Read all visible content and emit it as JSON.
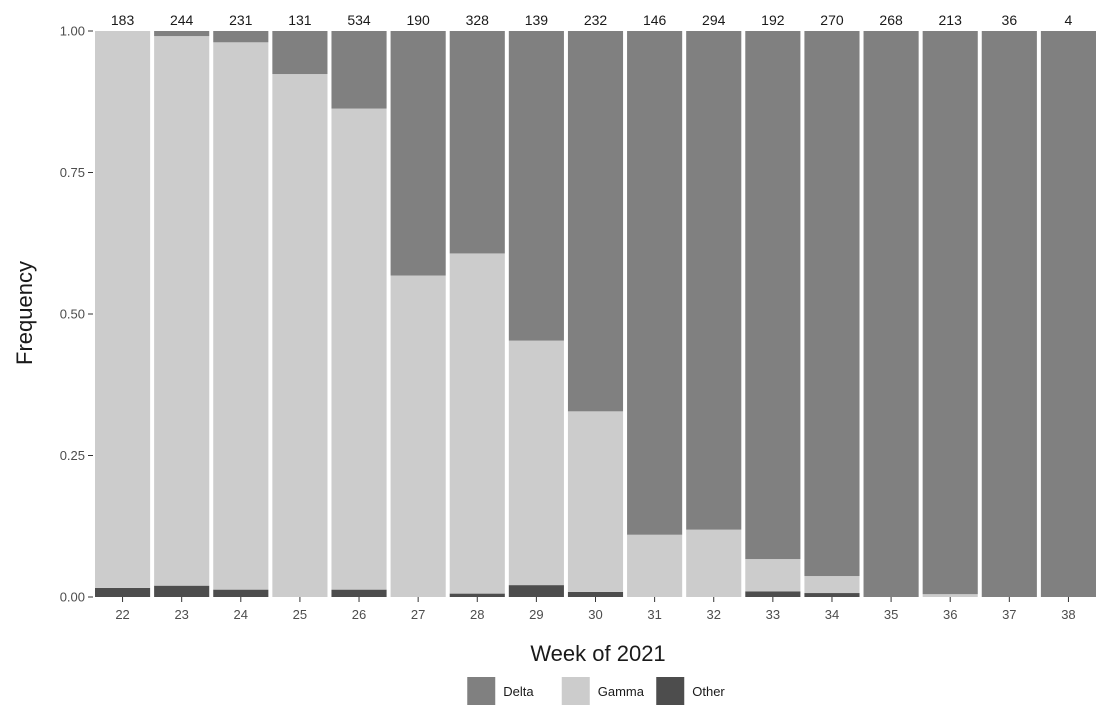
{
  "chart_data": {
    "type": "bar",
    "stacked": true,
    "normalized": true,
    "xlabel": "Week of 2021",
    "ylabel": "Frequency",
    "ylim": [
      0,
      1
    ],
    "yticks": [
      "0.00",
      "0.25",
      "0.50",
      "0.75",
      "1.00"
    ],
    "categories": [
      "22",
      "23",
      "24",
      "25",
      "26",
      "27",
      "28",
      "29",
      "30",
      "31",
      "32",
      "33",
      "34",
      "35",
      "36",
      "37",
      "38"
    ],
    "counts": [
      "183",
      "244",
      "231",
      "131",
      "534",
      "190",
      "328",
      "139",
      "232",
      "146",
      "294",
      "192",
      "270",
      "268",
      "213",
      "36",
      "4"
    ],
    "series": [
      {
        "name": "Other",
        "color": "#4d4d4d",
        "values": [
          0.016,
          0.02,
          0.013,
          0.0,
          0.013,
          0.0,
          0.006,
          0.021,
          0.009,
          0.0,
          0.0,
          0.01,
          0.007,
          0.0,
          0.0,
          0.0,
          0.0
        ]
      },
      {
        "name": "Gamma",
        "color": "#cccccc",
        "values": [
          0.984,
          0.971,
          0.967,
          0.924,
          0.85,
          0.568,
          0.601,
          0.432,
          0.319,
          0.11,
          0.119,
          0.057,
          0.03,
          0.0,
          0.005,
          0.0,
          0.0
        ]
      },
      {
        "name": "Delta",
        "color": "#808080",
        "values": [
          0.0,
          0.009,
          0.02,
          0.076,
          0.137,
          0.432,
          0.393,
          0.547,
          0.672,
          0.89,
          0.881,
          0.933,
          0.963,
          1.0,
          0.995,
          1.0,
          1.0
        ]
      }
    ],
    "legend": {
      "position": "bottom",
      "order": [
        "Delta",
        "Gamma",
        "Other"
      ]
    },
    "grid": false
  }
}
